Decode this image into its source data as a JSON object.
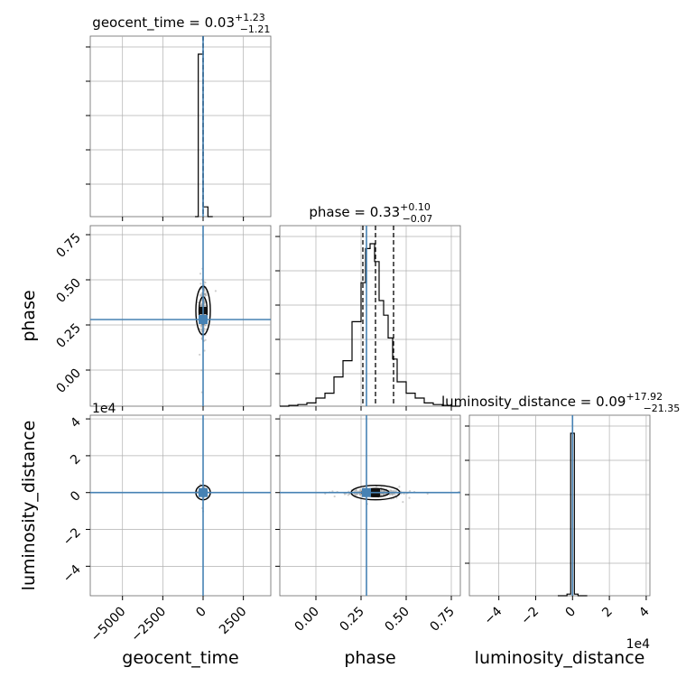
{
  "colors": {
    "truth": "#4682b4",
    "hist": "#000000",
    "grid": "#b0b0b0",
    "samples": "#a0a0a0"
  },
  "chart_data": {
    "type": "corner",
    "parameters": [
      "geocent_time",
      "phase",
      "luminosity_distance"
    ],
    "axis_labels": {
      "geocent_time": "geocent_time",
      "phase": "phase",
      "luminosity_distance": "luminosity_distance"
    },
    "ranges": {
      "geocent_time": [
        -7000,
        4200
      ],
      "phase": [
        -0.2,
        0.8
      ],
      "luminosity_distance": [
        -56000,
        42000
      ]
    },
    "ticks": {
      "geocent_time": {
        "values": [
          -5000,
          -2500,
          0,
          2500
        ],
        "labels": [
          "−5000",
          "−2500",
          "0",
          "2500"
        ]
      },
      "phase": {
        "values": [
          0.0,
          0.25,
          0.5,
          0.75
        ],
        "labels": [
          "0.00",
          "0.25",
          "0.50",
          "0.75"
        ]
      },
      "luminosity_distance": {
        "values": [
          -40000,
          -20000,
          0,
          20000,
          40000
        ],
        "labels": [
          "−4",
          "−2",
          "0",
          "2",
          "4"
        ],
        "offset_text": "1e4"
      }
    },
    "titles": {
      "geocent_time": {
        "name": "geocent_time",
        "median": "0.03",
        "plus": "+1.23",
        "minus": "−1.21"
      },
      "phase": {
        "name": "phase",
        "median": "0.33",
        "plus": "+0.10",
        "minus": "−0.07"
      },
      "luminosity_distance": {
        "name": "luminosity_distance",
        "median": "0.09",
        "plus": "+17.92",
        "minus": "−21.35"
      }
    },
    "truths": {
      "geocent_time": 0,
      "phase": 0.28,
      "luminosity_distance": 0
    },
    "quantiles": {
      "geocent_time": [
        -1.18,
        0.03,
        1.26
      ],
      "phase": [
        0.26,
        0.33,
        0.43
      ],
      "luminosity_distance": [
        -21.26,
        0.09,
        18.01
      ]
    },
    "histograms": {
      "geocent_time": {
        "edges": [
          -500,
          -300,
          0,
          300,
          600
        ],
        "counts": [
          0.0,
          1.0,
          0.06,
          0.0
        ]
      },
      "phase": {
        "edges": [
          -0.2,
          -0.15,
          -0.1,
          -0.05,
          0.0,
          0.05,
          0.1,
          0.15,
          0.2,
          0.25,
          0.275,
          0.3,
          0.325,
          0.35,
          0.375,
          0.4,
          0.425,
          0.45,
          0.5,
          0.55,
          0.6,
          0.65,
          0.7,
          0.75,
          0.8
        ],
        "counts": [
          0.0,
          0.005,
          0.01,
          0.02,
          0.05,
          0.08,
          0.18,
          0.28,
          0.52,
          0.76,
          0.97,
          1.0,
          0.89,
          0.65,
          0.56,
          0.42,
          0.29,
          0.15,
          0.08,
          0.05,
          0.02,
          0.01,
          0.005,
          0.0
        ]
      },
      "luminosity_distance": {
        "edges": [
          -8000,
          -3000,
          -1000,
          1000,
          3000,
          8000
        ],
        "counts": [
          0.0,
          0.01,
          1.0,
          0.01,
          0.0
        ]
      }
    }
  }
}
